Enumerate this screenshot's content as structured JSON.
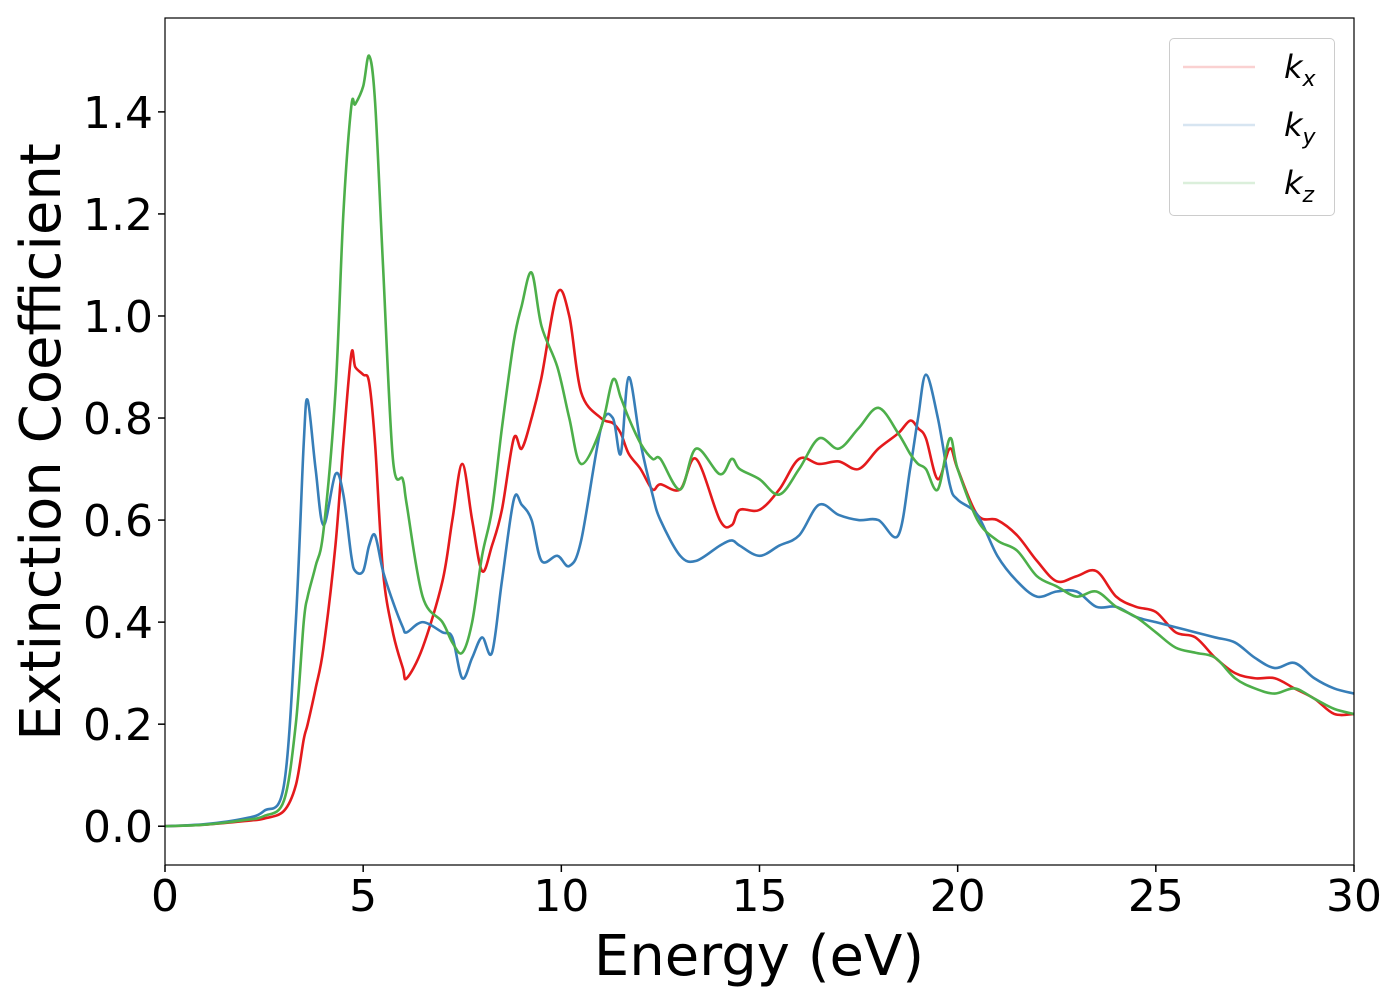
{
  "chart_data": {
    "type": "line",
    "xlabel": "Energy (eV)",
    "ylabel": "Extinction Coefficient",
    "xlim": [
      0,
      30
    ],
    "ylim": [
      -0.076,
      1.584
    ],
    "xticks": [
      0,
      5,
      10,
      15,
      20,
      25,
      30
    ],
    "yticks": [
      {
        "value": 0,
        "label": "0.0"
      },
      0.2,
      0.4,
      0.6,
      0.8,
      {
        "value": 1,
        "label": "1.0"
      },
      1.2,
      1.4
    ],
    "grid": false,
    "legend": "upper right",
    "x": [
      0,
      1,
      2,
      2.5,
      3,
      3.3,
      3.5,
      3.6,
      3.8,
      4,
      4.3,
      4.5,
      4.7,
      4.8,
      5,
      5.15,
      5.3,
      5.5,
      5.75,
      6,
      6.1,
      6.5,
      7,
      7.25,
      7.5,
      7.75,
      8,
      8.25,
      8.5,
      8.8,
      9,
      9.25,
      9.5,
      9.9,
      10.2,
      10.5,
      11,
      11.3,
      11.5,
      11.7,
      12,
      12.3,
      12.5,
      13,
      13.4,
      14,
      14.3,
      14.5,
      15,
      15.5,
      16,
      16.5,
      17,
      17.5,
      18,
      18.5,
      18.8,
      19,
      19.2,
      19.5,
      19.8,
      20,
      20.5,
      21,
      21.5,
      22,
      22.5,
      23,
      23.5,
      24,
      24.5,
      25,
      25.5,
      26,
      26.5,
      27,
      27.5,
      28,
      28.5,
      29,
      29.5,
      30
    ],
    "series": [
      {
        "name": "kx",
        "color": "#e41a1c",
        "values": [
          0,
          0.003,
          0.01,
          0.015,
          0.03,
          0.08,
          0.17,
          0.2,
          0.27,
          0.35,
          0.55,
          0.75,
          0.925,
          0.9,
          0.885,
          0.87,
          0.75,
          0.5,
          0.38,
          0.31,
          0.29,
          0.35,
          0.48,
          0.6,
          0.71,
          0.6,
          0.5,
          0.55,
          0.62,
          0.76,
          0.74,
          0.8,
          0.88,
          1.045,
          1.0,
          0.85,
          0.8,
          0.79,
          0.77,
          0.73,
          0.7,
          0.66,
          0.67,
          0.66,
          0.72,
          0.6,
          0.59,
          0.62,
          0.62,
          0.66,
          0.72,
          0.71,
          0.715,
          0.7,
          0.74,
          0.77,
          0.795,
          0.78,
          0.76,
          0.68,
          0.74,
          0.7,
          0.61,
          0.6,
          0.57,
          0.52,
          0.48,
          0.49,
          0.5,
          0.45,
          0.43,
          0.42,
          0.38,
          0.37,
          0.33,
          0.3,
          0.29,
          0.29,
          0.27,
          0.25,
          0.22,
          0.22
        ]
      },
      {
        "name": "ky",
        "color": "#377eb8",
        "values": [
          0,
          0.004,
          0.015,
          0.03,
          0.08,
          0.4,
          0.75,
          0.835,
          0.7,
          0.59,
          0.69,
          0.65,
          0.53,
          0.5,
          0.5,
          0.55,
          0.57,
          0.5,
          0.44,
          0.39,
          0.38,
          0.4,
          0.38,
          0.37,
          0.29,
          0.33,
          0.37,
          0.34,
          0.48,
          0.64,
          0.63,
          0.6,
          0.52,
          0.53,
          0.51,
          0.56,
          0.78,
          0.8,
          0.73,
          0.88,
          0.75,
          0.65,
          0.6,
          0.53,
          0.52,
          0.55,
          0.56,
          0.55,
          0.53,
          0.55,
          0.57,
          0.63,
          0.61,
          0.6,
          0.6,
          0.57,
          0.7,
          0.8,
          0.885,
          0.8,
          0.67,
          0.64,
          0.61,
          0.53,
          0.48,
          0.45,
          0.46,
          0.46,
          0.43,
          0.43,
          0.41,
          0.4,
          0.39,
          0.38,
          0.37,
          0.36,
          0.33,
          0.31,
          0.32,
          0.29,
          0.27,
          0.26
        ]
      },
      {
        "name": "kz",
        "color": "#4daf4a",
        "values": [
          0,
          0.003,
          0.012,
          0.02,
          0.05,
          0.2,
          0.4,
          0.45,
          0.51,
          0.58,
          0.85,
          1.2,
          1.41,
          1.415,
          1.45,
          1.51,
          1.42,
          1.1,
          0.72,
          0.68,
          0.63,
          0.45,
          0.4,
          0.36,
          0.34,
          0.4,
          0.53,
          0.62,
          0.78,
          0.95,
          1.02,
          1.085,
          0.98,
          0.9,
          0.8,
          0.71,
          0.78,
          0.875,
          0.84,
          0.8,
          0.75,
          0.72,
          0.72,
          0.66,
          0.74,
          0.69,
          0.72,
          0.7,
          0.68,
          0.65,
          0.7,
          0.76,
          0.74,
          0.78,
          0.82,
          0.77,
          0.73,
          0.71,
          0.7,
          0.66,
          0.76,
          0.7,
          0.6,
          0.56,
          0.54,
          0.49,
          0.47,
          0.45,
          0.46,
          0.43,
          0.41,
          0.38,
          0.35,
          0.34,
          0.33,
          0.29,
          0.27,
          0.26,
          0.27,
          0.25,
          0.23,
          0.22
        ]
      }
    ]
  }
}
